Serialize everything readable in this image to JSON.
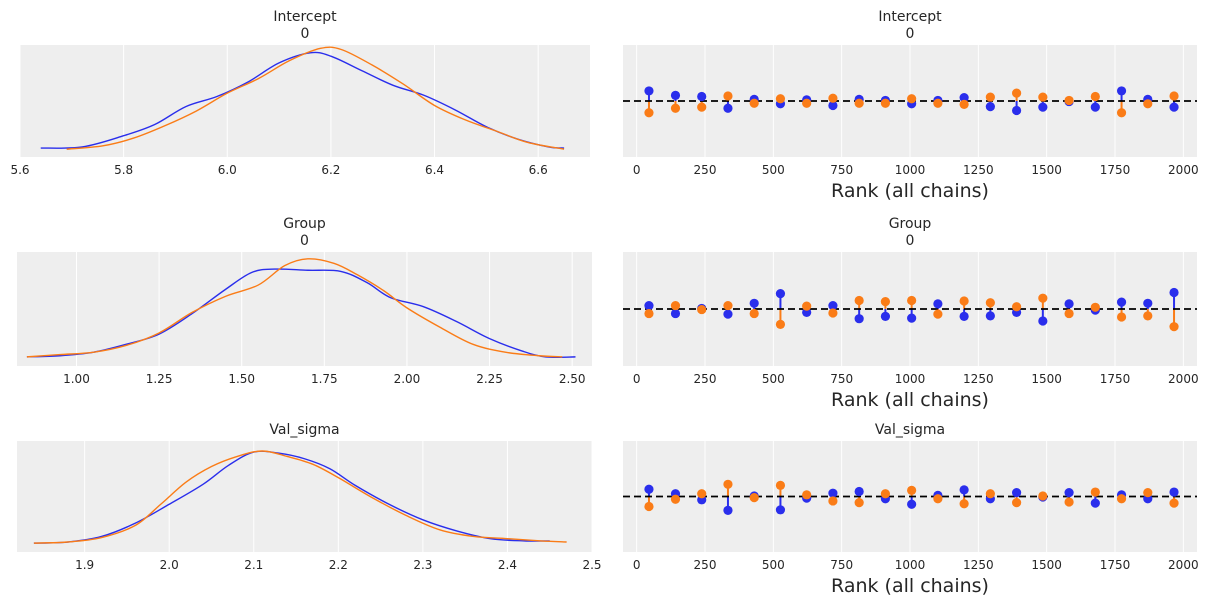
{
  "colors": {
    "chain_0": "#2a2eec",
    "chain_1": "#fa7c17",
    "panel_bg": "#eeeeee",
    "grid": "#ffffff",
    "ref_line": "#000000"
  },
  "chart_data": [
    {
      "type": "line",
      "title": "Intercept",
      "subtitle": "0",
      "xlim": [
        5.6,
        6.7
      ],
      "xticks": [
        "5.6",
        "5.8",
        "6.0",
        "6.2",
        "6.4",
        "6.6"
      ],
      "tick_values": [
        5.6,
        5.8,
        6.0,
        6.2,
        6.4,
        6.6
      ],
      "ylim": [
        0,
        1
      ],
      "series": [
        {
          "color": "#2a2eec",
          "x": [
            5.64,
            5.72,
            5.8,
            5.86,
            5.92,
            5.98,
            6.04,
            6.1,
            6.16,
            6.2,
            6.26,
            6.32,
            6.38,
            6.44,
            6.5,
            6.56,
            6.62,
            6.65
          ],
          "values": [
            0.08,
            0.09,
            0.19,
            0.29,
            0.45,
            0.54,
            0.67,
            0.84,
            0.93,
            0.9,
            0.77,
            0.64,
            0.55,
            0.42,
            0.27,
            0.16,
            0.09,
            0.08
          ]
        },
        {
          "color": "#fa7c17",
          "x": [
            5.69,
            5.76,
            5.82,
            5.88,
            5.94,
            6.0,
            6.06,
            6.12,
            6.18,
            6.22,
            6.28,
            6.34,
            6.4,
            6.46,
            6.52,
            6.58,
            6.65
          ],
          "values": [
            0.07,
            0.1,
            0.17,
            0.28,
            0.41,
            0.57,
            0.7,
            0.86,
            0.97,
            0.96,
            0.82,
            0.65,
            0.46,
            0.33,
            0.23,
            0.13,
            0.07
          ]
        }
      ]
    },
    {
      "type": "scatter",
      "title": "Intercept",
      "subtitle": "0",
      "xlabel": "Rank (all chains)",
      "xlim": [
        -50,
        2050
      ],
      "xticks": [
        "0",
        "250",
        "500",
        "750",
        "1000",
        "1250",
        "1500",
        "1750",
        "2000"
      ],
      "tick_values": [
        0,
        250,
        500,
        750,
        1000,
        1250,
        1500,
        1750,
        2000
      ],
      "ylim": [
        -1,
        1
      ],
      "reference_line": 0,
      "bins_x": [
        45,
        142,
        238,
        334,
        430,
        526,
        622,
        718,
        814,
        910,
        1006,
        1102,
        1198,
        1294,
        1390,
        1486,
        1582,
        1678,
        1774,
        1870,
        1966
      ],
      "series": [
        {
          "color": "#2a2eec",
          "values": [
            0.18,
            0.1,
            0.08,
            -0.13,
            0.03,
            -0.05,
            0.02,
            -0.08,
            0.03,
            0.01,
            -0.05,
            0.01,
            0.06,
            -0.1,
            -0.17,
            -0.11,
            -0.01,
            -0.11,
            0.18,
            0.03,
            -0.11
          ]
        },
        {
          "color": "#fa7c17",
          "values": [
            -0.21,
            -0.13,
            -0.11,
            0.09,
            -0.04,
            0.04,
            -0.04,
            0.05,
            -0.04,
            -0.04,
            0.04,
            -0.04,
            -0.06,
            0.07,
            0.14,
            0.07,
            0.01,
            0.08,
            -0.21,
            -0.05,
            0.09
          ]
        }
      ]
    },
    {
      "type": "line",
      "title": "Group",
      "subtitle": "0",
      "xlim": [
        0.82,
        2.56
      ],
      "xticks": [
        "1.00",
        "1.25",
        "1.50",
        "1.75",
        "2.00",
        "2.25",
        "2.50"
      ],
      "tick_values": [
        1.0,
        1.25,
        1.5,
        1.75,
        2.0,
        2.25,
        2.5
      ],
      "ylim": [
        0,
        1
      ],
      "series": [
        {
          "color": "#2a2eec",
          "x": [
            0.85,
            0.95,
            1.05,
            1.15,
            1.25,
            1.35,
            1.45,
            1.53,
            1.6,
            1.7,
            1.8,
            1.88,
            1.95,
            2.05,
            2.15,
            2.25,
            2.35,
            2.42,
            2.51
          ],
          "values": [
            0.08,
            0.09,
            0.12,
            0.19,
            0.28,
            0.46,
            0.67,
            0.82,
            0.85,
            0.84,
            0.83,
            0.73,
            0.6,
            0.52,
            0.39,
            0.24,
            0.13,
            0.08,
            0.08
          ]
        },
        {
          "color": "#fa7c17",
          "x": [
            0.85,
            0.95,
            1.05,
            1.15,
            1.25,
            1.35,
            1.45,
            1.55,
            1.63,
            1.7,
            1.78,
            1.85,
            1.93,
            2.0,
            2.1,
            2.2,
            2.3,
            2.4,
            2.47
          ],
          "values": [
            0.08,
            0.1,
            0.12,
            0.18,
            0.29,
            0.47,
            0.61,
            0.71,
            0.88,
            0.94,
            0.9,
            0.8,
            0.66,
            0.51,
            0.34,
            0.19,
            0.12,
            0.09,
            0.08
          ]
        }
      ]
    },
    {
      "type": "scatter",
      "title": "Group",
      "subtitle": "0",
      "xlabel": "Rank (all chains)",
      "xlim": [
        -50,
        2050
      ],
      "xticks": [
        "0",
        "250",
        "500",
        "750",
        "1000",
        "1250",
        "1500",
        "1750",
        "2000"
      ],
      "tick_values": [
        0,
        250,
        500,
        750,
        1000,
        1250,
        1500,
        1750,
        2000
      ],
      "ylim": [
        -1,
        1
      ],
      "reference_line": 0,
      "bins_x": [
        45,
        142,
        238,
        334,
        430,
        526,
        622,
        718,
        814,
        910,
        1006,
        1102,
        1198,
        1294,
        1390,
        1486,
        1582,
        1678,
        1774,
        1870,
        1966
      ],
      "series": [
        {
          "color": "#2a2eec",
          "values": [
            0.06,
            -0.08,
            0.01,
            -0.09,
            0.1,
            0.27,
            -0.06,
            0.06,
            -0.17,
            -0.13,
            -0.16,
            0.09,
            -0.13,
            -0.12,
            -0.06,
            -0.21,
            0.09,
            -0.02,
            0.12,
            0.1,
            0.29
          ]
        },
        {
          "color": "#fa7c17",
          "values": [
            -0.08,
            0.06,
            -0.01,
            0.06,
            -0.08,
            -0.27,
            0.05,
            -0.07,
            0.15,
            0.13,
            0.15,
            -0.09,
            0.14,
            0.11,
            0.04,
            0.19,
            -0.08,
            0.03,
            -0.14,
            -0.12,
            -0.31
          ]
        }
      ]
    },
    {
      "type": "line",
      "title": "Val_sigma",
      "xlim": [
        1.82,
        2.5
      ],
      "xticks": [
        "1.9",
        "2.0",
        "2.1",
        "2.2",
        "2.3",
        "2.4",
        "2.5"
      ],
      "tick_values": [
        1.9,
        2.0,
        2.1,
        2.2,
        2.3,
        2.4,
        2.5
      ],
      "ylim": [
        0,
        1
      ],
      "series": [
        {
          "color": "#2a2eec",
          "x": [
            1.84,
            1.88,
            1.92,
            1.96,
            2.0,
            2.04,
            2.07,
            2.1,
            2.13,
            2.16,
            2.19,
            2.22,
            2.26,
            2.3,
            2.34,
            2.38,
            2.42,
            2.45
          ],
          "values": [
            0.08,
            0.09,
            0.14,
            0.26,
            0.43,
            0.61,
            0.78,
            0.9,
            0.89,
            0.84,
            0.75,
            0.6,
            0.43,
            0.29,
            0.19,
            0.12,
            0.1,
            0.1
          ]
        },
        {
          "color": "#fa7c17",
          "x": [
            1.84,
            1.88,
            1.92,
            1.96,
            1.99,
            2.02,
            2.05,
            2.08,
            2.11,
            2.14,
            2.17,
            2.2,
            2.24,
            2.28,
            2.32,
            2.36,
            2.4,
            2.44,
            2.47
          ],
          "values": [
            0.08,
            0.09,
            0.13,
            0.24,
            0.43,
            0.63,
            0.77,
            0.86,
            0.91,
            0.86,
            0.79,
            0.67,
            0.49,
            0.33,
            0.2,
            0.14,
            0.12,
            0.1,
            0.09
          ]
        }
      ]
    },
    {
      "type": "scatter",
      "title": "Val_sigma",
      "xlabel": "Rank (all chains)",
      "xlim": [
        -50,
        2050
      ],
      "xticks": [
        "0",
        "250",
        "500",
        "750",
        "1000",
        "1250",
        "1500",
        "1750",
        "2000"
      ],
      "tick_values": [
        0,
        250,
        500,
        750,
        1000,
        1250,
        1500,
        1750,
        2000
      ],
      "ylim": [
        -1,
        1
      ],
      "reference_line": 0,
      "bins_x": [
        45,
        142,
        238,
        334,
        430,
        526,
        622,
        718,
        814,
        910,
        1006,
        1102,
        1198,
        1294,
        1390,
        1486,
        1582,
        1678,
        1774,
        1870,
        1966
      ],
      "series": [
        {
          "color": "#2a2eec",
          "values": [
            0.13,
            0.05,
            -0.06,
            -0.25,
            0.01,
            -0.24,
            -0.03,
            0.06,
            0.09,
            -0.04,
            -0.14,
            0.02,
            0.12,
            -0.04,
            0.07,
            -0.01,
            0.07,
            -0.12,
            0.03,
            -0.04,
            0.08
          ]
        },
        {
          "color": "#fa7c17",
          "values": [
            -0.18,
            -0.05,
            0.05,
            0.22,
            -0.02,
            0.2,
            0.03,
            -0.08,
            -0.11,
            0.05,
            0.11,
            -0.04,
            -0.13,
            0.05,
            -0.11,
            0.01,
            -0.1,
            0.08,
            -0.04,
            0.07,
            -0.12
          ]
        }
      ]
    }
  ]
}
